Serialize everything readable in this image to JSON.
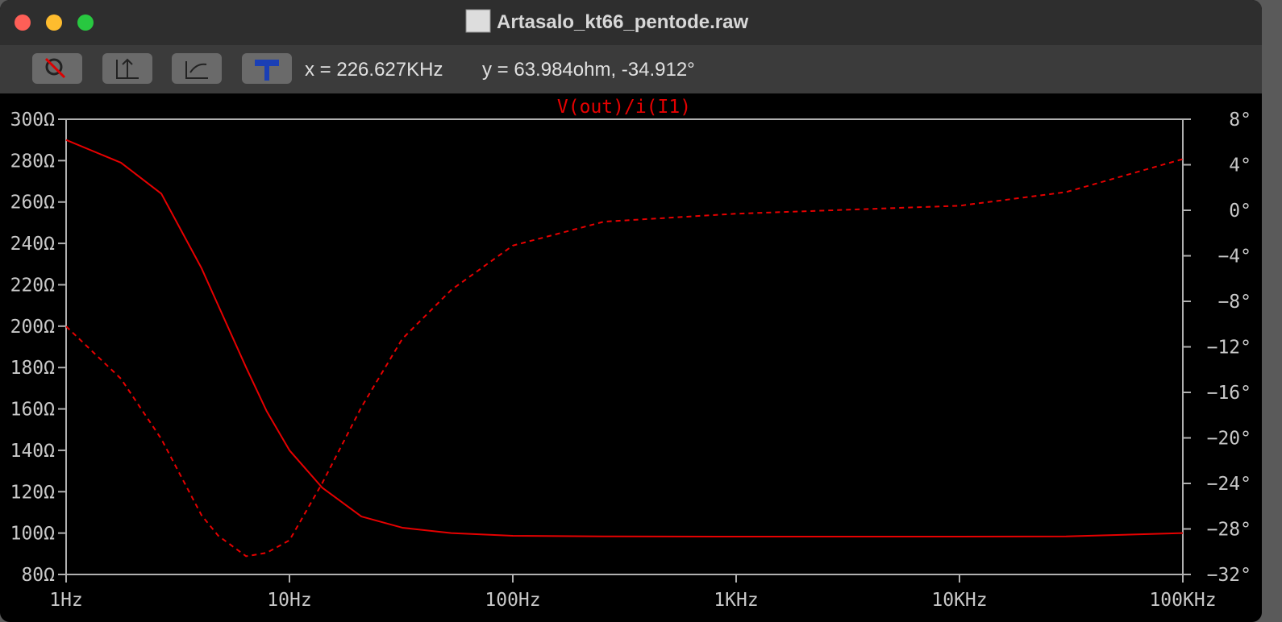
{
  "window": {
    "title": "Artasalo_kt66_pentode.raw"
  },
  "toolbar": {
    "cursor_x": "x = 226.627KHz",
    "cursor_y": "y = 63.984ohm, -34.912°"
  },
  "chart_data": {
    "type": "line",
    "title": "V(out)/i(I1)",
    "xscale": "log",
    "x": [
      1,
      1.76,
      2.67,
      4.04,
      4.8,
      6.4,
      7.9,
      10,
      14,
      21,
      32,
      53,
      100,
      256,
      1000,
      10000,
      30000,
      100000
    ],
    "series": [
      {
        "color": "#e60000",
        "style": "solid",
        "values": [
          290,
          279,
          264,
          228,
          210,
          180,
          159,
          140,
          122,
          108,
          102.6,
          100,
          98.7,
          98.4,
          98.3,
          98.3,
          98.4,
          100
        ]
      },
      {
        "color": "#e60000",
        "style": "dashed",
        "axis": "y2",
        "values": [
          -10.2,
          -14.8,
          -20.1,
          -26.8,
          -28.6,
          -30.4,
          -30.1,
          -29,
          -24,
          -17.3,
          -11.3,
          -7,
          -3.1,
          -1,
          -0.3,
          0.4,
          1.6,
          4.5
        ]
      }
    ],
    "xlim": [
      1,
      100000
    ],
    "xticks": [
      {
        "value": 1,
        "label": "1Hz"
      },
      {
        "value": 10,
        "label": "10Hz"
      },
      {
        "value": 100,
        "label": "100Hz"
      },
      {
        "value": 1000,
        "label": "1KHz"
      },
      {
        "value": 10000,
        "label": "10KHz"
      },
      {
        "value": 100000,
        "label": "100KHz"
      }
    ],
    "ylim": [
      80,
      300
    ],
    "yticks": [
      {
        "value": 80,
        "label": "80Ω"
      },
      {
        "value": 100,
        "label": "100Ω"
      },
      {
        "value": 120,
        "label": "120Ω"
      },
      {
        "value": 140,
        "label": "140Ω"
      },
      {
        "value": 160,
        "label": "160Ω"
      },
      {
        "value": 180,
        "label": "180Ω"
      },
      {
        "value": 200,
        "label": "200Ω"
      },
      {
        "value": 220,
        "label": "220Ω"
      },
      {
        "value": 240,
        "label": "240Ω"
      },
      {
        "value": 260,
        "label": "260Ω"
      },
      {
        "value": 280,
        "label": "280Ω"
      },
      {
        "value": 300,
        "label": "300Ω"
      }
    ],
    "y2lim": [
      -32,
      8
    ],
    "y2ticks": [
      {
        "value": -32,
        "label": "−32°"
      },
      {
        "value": -28,
        "label": "−28°"
      },
      {
        "value": -24,
        "label": "−24°"
      },
      {
        "value": -20,
        "label": "−20°"
      },
      {
        "value": -16,
        "label": "−16°"
      },
      {
        "value": -12,
        "label": "−12°"
      },
      {
        "value": -8,
        "label": "−8°"
      },
      {
        "value": -4,
        "label": "−4°"
      },
      {
        "value": 0,
        "label": "0°"
      },
      {
        "value": 4,
        "label": "4°"
      },
      {
        "value": 8,
        "label": "8°"
      }
    ],
    "grid": false
  }
}
